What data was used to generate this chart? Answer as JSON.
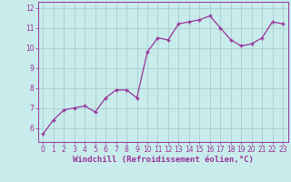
{
  "x": [
    0,
    1,
    2,
    3,
    4,
    5,
    6,
    7,
    8,
    9,
    10,
    11,
    12,
    13,
    14,
    15,
    16,
    17,
    18,
    19,
    20,
    21,
    22,
    23
  ],
  "y": [
    5.7,
    6.4,
    6.9,
    7.0,
    7.1,
    6.8,
    7.5,
    7.9,
    7.9,
    7.5,
    9.8,
    10.5,
    10.4,
    11.2,
    11.3,
    11.4,
    11.6,
    11.0,
    10.4,
    10.1,
    10.2,
    10.5,
    11.3,
    11.2
  ],
  "line_color": "#993399",
  "marker_color": "#993399",
  "bg_color": "#c8ecec",
  "grid_color": "#aacccc",
  "xlabel": "Windchill (Refroidissement éolien,°C)",
  "ylim_min": 5.3,
  "ylim_max": 12.3,
  "xlim_min": -0.5,
  "xlim_max": 23.5,
  "yticks": [
    6,
    7,
    8,
    9,
    10,
    11,
    12
  ],
  "xticks": [
    0,
    1,
    2,
    3,
    4,
    5,
    6,
    7,
    8,
    9,
    10,
    11,
    12,
    13,
    14,
    15,
    16,
    17,
    18,
    19,
    20,
    21,
    22,
    23
  ],
  "font_color": "#993399",
  "label_fontsize": 6.5,
  "tick_fontsize": 5.5,
  "linewidth": 0.9,
  "markersize": 3.5
}
